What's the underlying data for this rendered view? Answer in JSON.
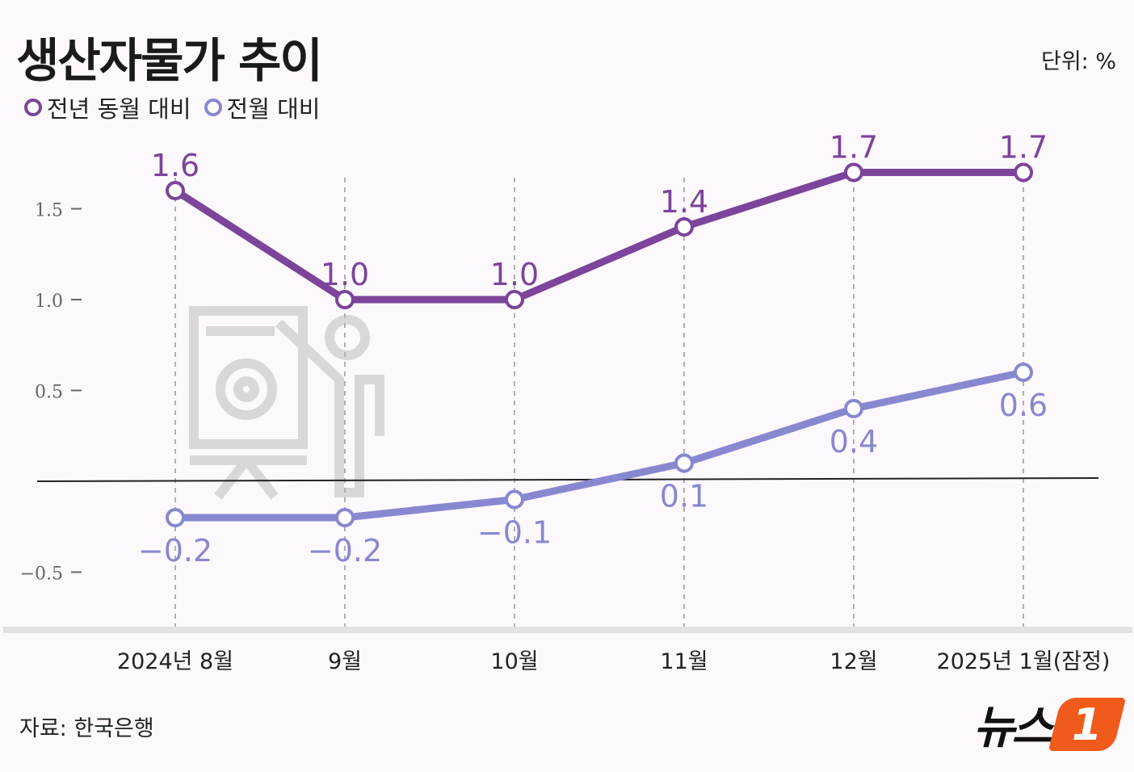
{
  "title": "생산자물가 추이",
  "unit": "단위: %",
  "source": "자료: 한국은행",
  "logo": {
    "text": "뉴스",
    "badge": "1"
  },
  "colors": {
    "yoy": "#7c449a",
    "mom": "#8888d0",
    "axis_text": "#666666",
    "grid_dash": "#b0b0b0",
    "zero_line": "#222222",
    "logo_badge": "#f05a1a"
  },
  "chart_data": {
    "type": "line",
    "title": "생산자물가 추이",
    "categories": [
      "2024년 8월",
      "9월",
      "10월",
      "11월",
      "12월",
      "2025년 1월(잠정)"
    ],
    "series": [
      {
        "name": "전년 동월 대비",
        "values": [
          1.6,
          1.0,
          1.0,
          1.4,
          1.7,
          1.7
        ],
        "labels": [
          "1.6",
          "1.0",
          "1.0",
          "1.4",
          "1.7",
          "1.7"
        ]
      },
      {
        "name": "전월 대비",
        "values": [
          -0.2,
          -0.2,
          -0.1,
          0.1,
          0.4,
          0.6
        ],
        "labels": [
          "−0.2",
          "−0.2",
          "−0.1",
          "0.1",
          "0.4",
          "0.6"
        ]
      }
    ],
    "yticks": [
      1.5,
      1.0,
      0.5,
      -0.5
    ],
    "ytick_labels": [
      "1.5",
      "1.0",
      "0.5",
      "−0.5"
    ],
    "ylim": [
      -0.8,
      2.2
    ],
    "zero_line": true,
    "xlabel": "",
    "ylabel": ""
  }
}
